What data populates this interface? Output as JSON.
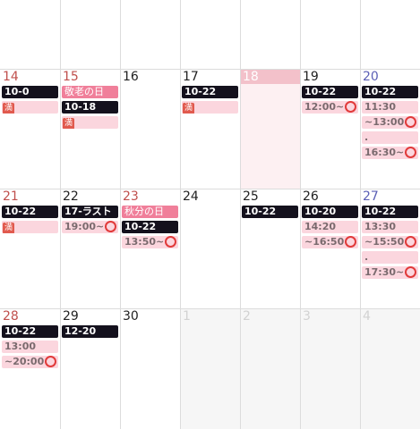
{
  "calendar": {
    "weeks": [
      {
        "days": [
          {
            "num": "",
            "kind": "blank",
            "events": []
          },
          {
            "num": "",
            "kind": "blank",
            "events": []
          },
          {
            "num": "",
            "kind": "blank",
            "events": []
          },
          {
            "num": "",
            "kind": "blank",
            "events": []
          },
          {
            "num": "",
            "kind": "blank",
            "events": []
          },
          {
            "num": "",
            "kind": "blank",
            "events": []
          },
          {
            "num": "",
            "kind": "blank",
            "events": []
          }
        ]
      },
      {
        "days": [
          {
            "num": "14",
            "kind": "sun",
            "events": [
              {
                "style": "dark",
                "text": "10-0"
              },
              {
                "style": "full",
                "text": "満"
              }
            ]
          },
          {
            "num": "15",
            "kind": "hol",
            "events": [
              {
                "style": "holiday",
                "text": "敬老の日"
              },
              {
                "style": "dark",
                "text": "10-18"
              },
              {
                "style": "full",
                "text": "満"
              }
            ]
          },
          {
            "num": "16",
            "kind": "weekday",
            "events": []
          },
          {
            "num": "17",
            "kind": "weekday",
            "events": [
              {
                "style": "dark",
                "text": "10-22"
              },
              {
                "style": "full",
                "text": "満"
              }
            ]
          },
          {
            "num": "18",
            "kind": "today",
            "events": []
          },
          {
            "num": "19",
            "kind": "weekday",
            "events": [
              {
                "style": "dark",
                "text": "10-22"
              },
              {
                "style": "light",
                "text": "12:00~",
                "circle": true
              }
            ]
          },
          {
            "num": "20",
            "kind": "sat",
            "events": [
              {
                "style": "dark",
                "text": "10-22"
              },
              {
                "style": "light",
                "text": "11:30"
              },
              {
                "style": "light",
                "text": "~13:00",
                "circle": true
              },
              {
                "style": "light",
                "text": "."
              },
              {
                "style": "light",
                "text": "16:30~",
                "circle": true
              }
            ]
          }
        ]
      },
      {
        "days": [
          {
            "num": "21",
            "kind": "sun",
            "events": [
              {
                "style": "dark",
                "text": "10-22"
              },
              {
                "style": "full",
                "text": "満"
              }
            ]
          },
          {
            "num": "22",
            "kind": "weekday",
            "events": [
              {
                "style": "dark",
                "text": "17-ラスト"
              },
              {
                "style": "light",
                "text": "19:00~",
                "circle": true
              }
            ]
          },
          {
            "num": "23",
            "kind": "hol",
            "events": [
              {
                "style": "holiday",
                "text": "秋分の日"
              },
              {
                "style": "dark",
                "text": "10-22"
              },
              {
                "style": "light",
                "text": "13:50~",
                "circle": true
              }
            ]
          },
          {
            "num": "24",
            "kind": "weekday",
            "events": []
          },
          {
            "num": "25",
            "kind": "weekday",
            "events": [
              {
                "style": "dark",
                "text": "10-22"
              }
            ]
          },
          {
            "num": "26",
            "kind": "weekday",
            "events": [
              {
                "style": "dark",
                "text": "10-20"
              },
              {
                "style": "light",
                "text": "14:20"
              },
              {
                "style": "light",
                "text": "~16:50",
                "circle": true
              }
            ]
          },
          {
            "num": "27",
            "kind": "sat",
            "events": [
              {
                "style": "dark",
                "text": "10-22"
              },
              {
                "style": "light",
                "text": "13:30"
              },
              {
                "style": "light",
                "text": "~15:50",
                "circle": true
              },
              {
                "style": "light",
                "text": "."
              },
              {
                "style": "light",
                "text": "17:30~",
                "circle": true
              }
            ]
          }
        ]
      },
      {
        "days": [
          {
            "num": "28",
            "kind": "sun",
            "events": [
              {
                "style": "dark",
                "text": "10-22"
              },
              {
                "style": "light",
                "text": "13:00"
              },
              {
                "style": "light",
                "text": "~20:00",
                "circle": true
              }
            ]
          },
          {
            "num": "29",
            "kind": "weekday",
            "events": [
              {
                "style": "dark",
                "text": "12-20"
              }
            ]
          },
          {
            "num": "30",
            "kind": "weekday",
            "events": []
          },
          {
            "num": "1",
            "kind": "other",
            "events": []
          },
          {
            "num": "2",
            "kind": "other",
            "events": []
          },
          {
            "num": "3",
            "kind": "other",
            "events": []
          },
          {
            "num": "4",
            "kind": "other",
            "events": []
          }
        ]
      }
    ]
  }
}
